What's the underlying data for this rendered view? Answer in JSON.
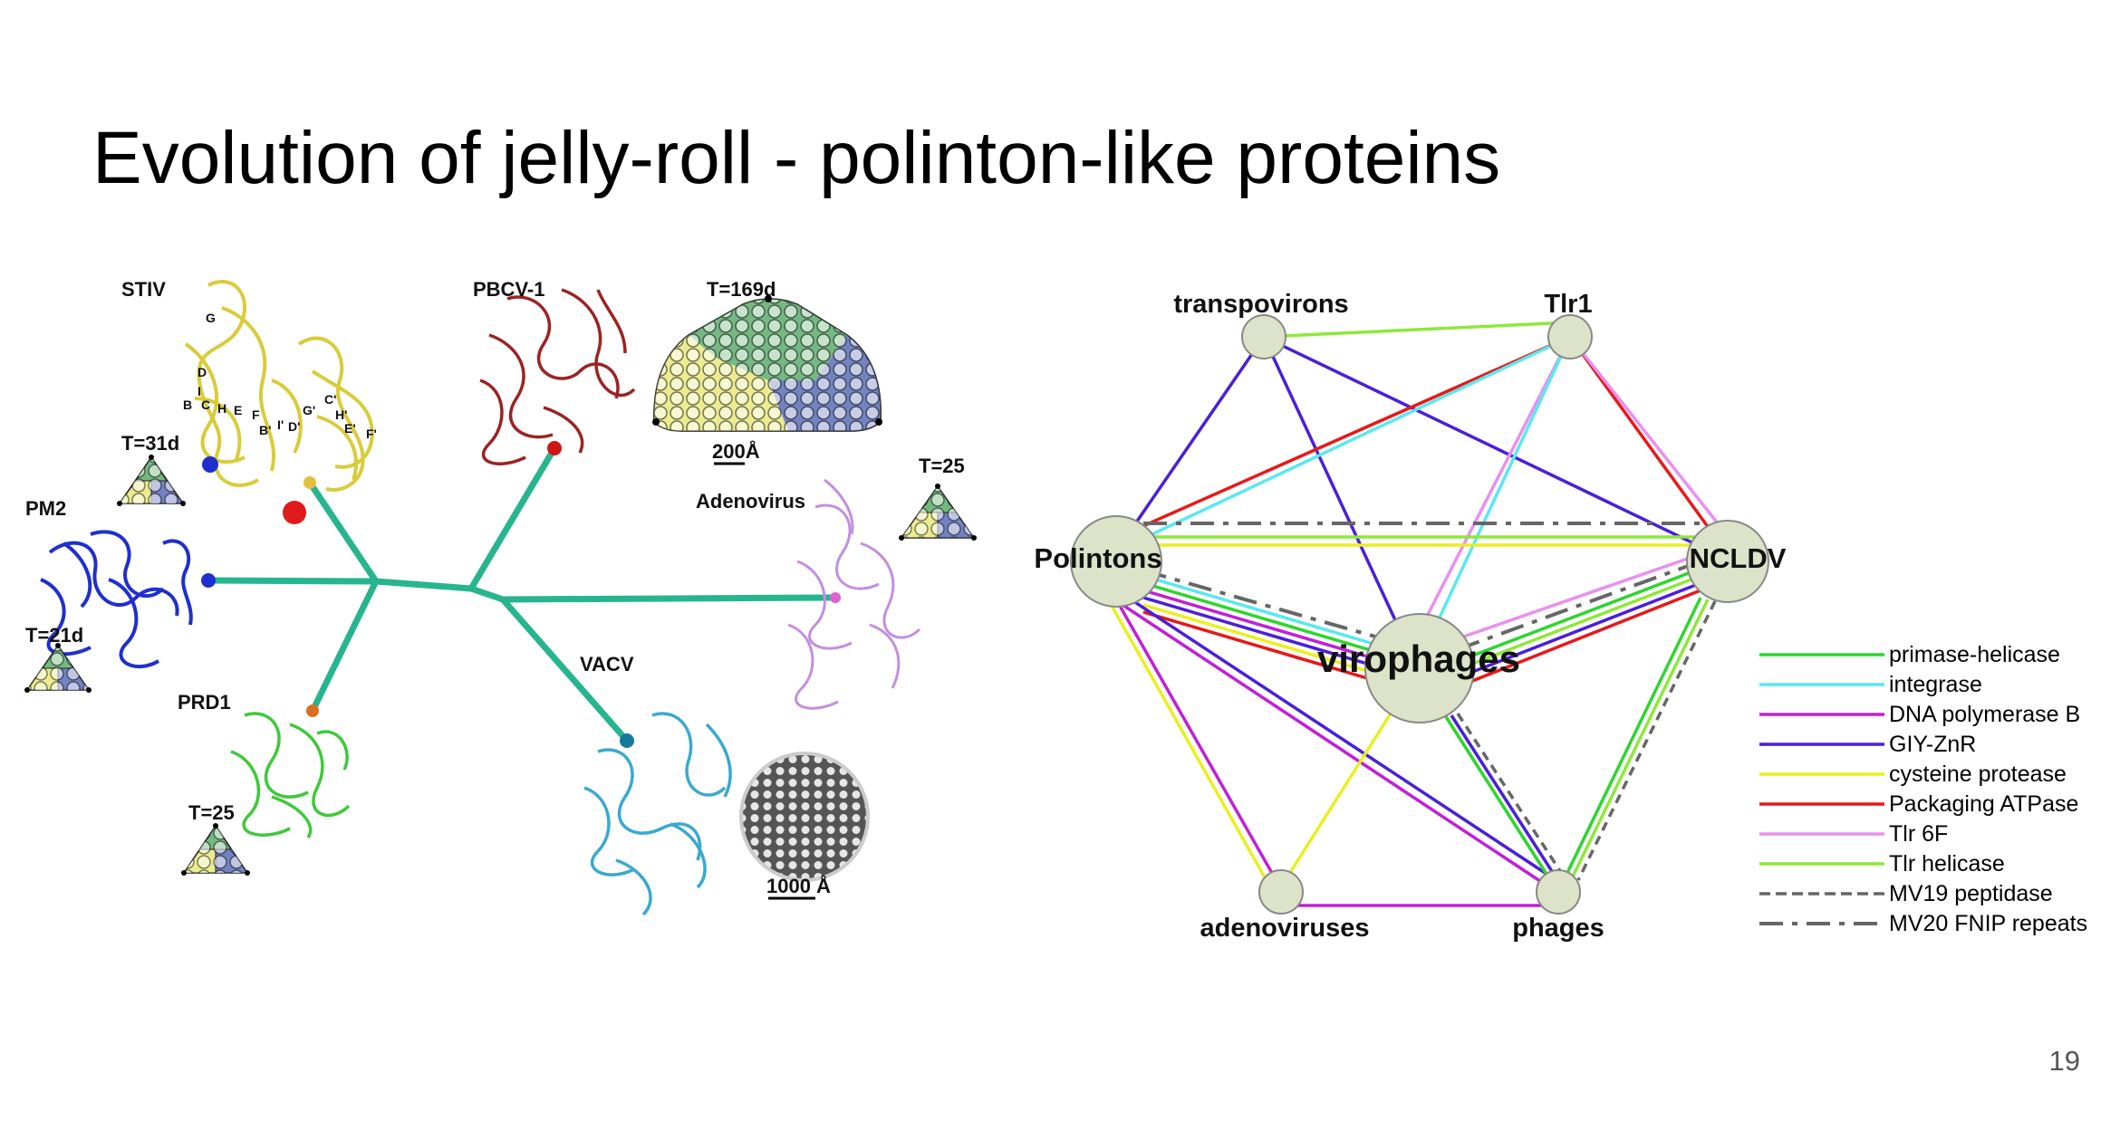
{
  "slide": {
    "title": "Evolution of jelly-roll - polinton-like proteins",
    "page_number": "19"
  },
  "tree": {
    "labels": {
      "stiv": "STIV",
      "pbcv": "PBCV-1",
      "pm2": "PM2",
      "prd1": "PRD1",
      "vacv": "VACV",
      "adenovirus": "Adenovirus",
      "t31d": "T=31d",
      "t21d": "T=21d",
      "t25_prd1": "T=25",
      "t25_adeno": "T=25",
      "t169d": "T=169d",
      "scale_200": "200Å",
      "scale_1000": "1000 Å"
    },
    "strand_letters": [
      "G",
      "D",
      "I",
      "B",
      "C",
      "H",
      "E",
      "F",
      "B'",
      "I'",
      "D'",
      "G'",
      "C'",
      "H'",
      "E'",
      "F'"
    ],
    "colors": {
      "branch": "#27b58f",
      "stiv": "#d8cc3a",
      "pbcv": "#9b2323",
      "pm2": "#1f2fcf",
      "prd1": "#3fc93a",
      "vacv": "#3aa9cf",
      "adenovirus": "#c38fe0",
      "tri_green": "#74b981",
      "tri_blue": "#7383c2",
      "tri_yellow": "#ecec8f"
    }
  },
  "network": {
    "nodes": {
      "transpovirons": "transpovirons",
      "tlr1": "Tlr1",
      "polintons": "Polintons",
      "ncldv": "NCLDV",
      "virophages": "virophages",
      "adenoviruses": "adenoviruses",
      "phages": "phages"
    },
    "node_fill": "#dce3c8",
    "legend": [
      {
        "label": "primase-helicase",
        "color": "#2ed52e",
        "style": "solid"
      },
      {
        "label": "integrase",
        "color": "#5ae8f0",
        "style": "solid"
      },
      {
        "label": "DNA polymerase B",
        "color": "#c020d8",
        "style": "solid"
      },
      {
        "label": "GIY-ZnR",
        "color": "#4a1fd8",
        "style": "solid"
      },
      {
        "label": "cysteine protease",
        "color": "#e8f020",
        "style": "solid"
      },
      {
        "label": "Packaging ATPase",
        "color": "#e81818",
        "style": "solid"
      },
      {
        "label": "Tlr 6F",
        "color": "#e890f0",
        "style": "solid"
      },
      {
        "label": "Tlr helicase",
        "color": "#8ee83a",
        "style": "solid"
      },
      {
        "label": "MV19 peptidase",
        "color": "#666666",
        "style": "dashed"
      },
      {
        "label": "MV20 FNIP repeats",
        "color": "#666666",
        "style": "dashdot"
      }
    ]
  }
}
